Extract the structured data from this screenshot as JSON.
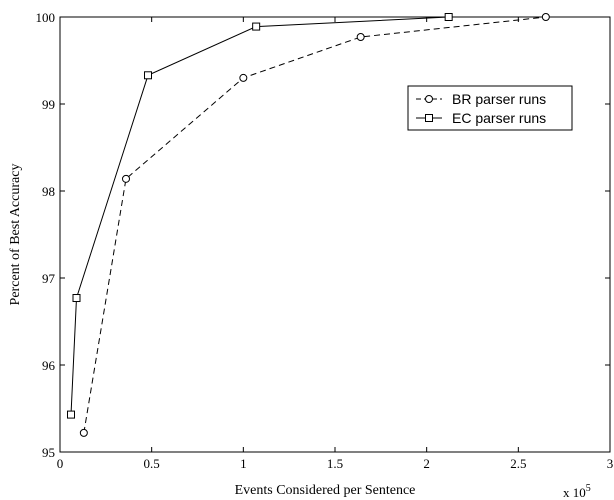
{
  "chart_data": {
    "type": "line",
    "xlabel": "Events Considered per Sentence",
    "ylabel": "Percent of Best Accuracy",
    "x_multiplier_label": "x 10",
    "x_multiplier_exp": "5",
    "xlim": [
      0,
      3
    ],
    "ylim": [
      95,
      100
    ],
    "xticks": [
      0,
      0.5,
      1,
      1.5,
      2,
      2.5,
      3
    ],
    "xtick_labels": [
      "0",
      "0.5",
      "1",
      "1.5",
      "2",
      "2.5",
      "3"
    ],
    "yticks": [
      95,
      96,
      97,
      98,
      99,
      100
    ],
    "ytick_labels": [
      "95",
      "96",
      "97",
      "98",
      "99",
      "100"
    ],
    "grid": false,
    "legend_position": "top-right",
    "series": [
      {
        "name": "BR parser runs",
        "style": "dashed",
        "marker": "circle",
        "color": "#000000",
        "x": [
          0.13,
          0.36,
          1.0,
          1.64,
          2.65
        ],
        "y": [
          95.22,
          98.14,
          99.3,
          99.77,
          100.0
        ]
      },
      {
        "name": "EC parser runs",
        "style": "solid",
        "marker": "square",
        "color": "#000000",
        "x": [
          0.06,
          0.09,
          0.48,
          1.07,
          2.12
        ],
        "y": [
          95.43,
          96.77,
          99.33,
          99.89,
          100.0
        ]
      }
    ]
  }
}
